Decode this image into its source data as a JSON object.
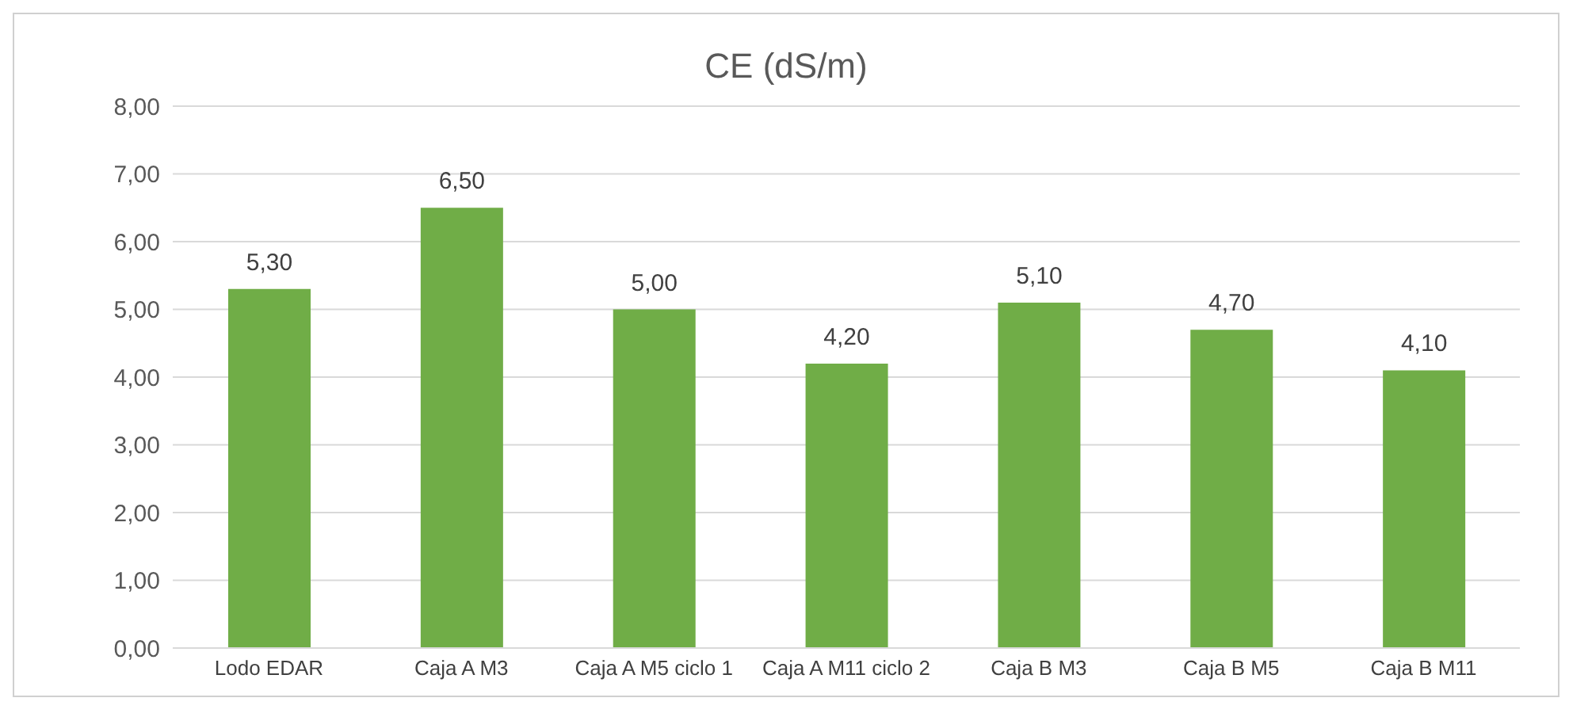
{
  "chart_data": {
    "type": "bar",
    "title": "CE (dS/m)",
    "categories": [
      "Lodo EDAR",
      "Caja A M3",
      "Caja A M5 ciclo 1",
      "Caja A M11 ciclo 2",
      "Caja B M3",
      "Caja B M5",
      "Caja B M11"
    ],
    "values": [
      5.3,
      6.5,
      5.0,
      4.2,
      5.1,
      4.7,
      4.1
    ],
    "value_labels": [
      "5,30",
      "6,50",
      "5,00",
      "4,20",
      "5,10",
      "4,70",
      "4,10"
    ],
    "color": "#70ad47",
    "ylim": [
      0,
      8
    ],
    "yticks": [
      {
        "value": 0,
        "label": "0,00"
      },
      {
        "value": 1,
        "label": "1,00"
      },
      {
        "value": 2,
        "label": "2,00"
      },
      {
        "value": 3,
        "label": "3,00"
      },
      {
        "value": 4,
        "label": "4,00"
      },
      {
        "value": 5,
        "label": "5,00"
      },
      {
        "value": 6,
        "label": "6,00"
      },
      {
        "value": 7,
        "label": "7,00"
      },
      {
        "value": 8,
        "label": "8,00"
      }
    ],
    "grid": "y"
  }
}
